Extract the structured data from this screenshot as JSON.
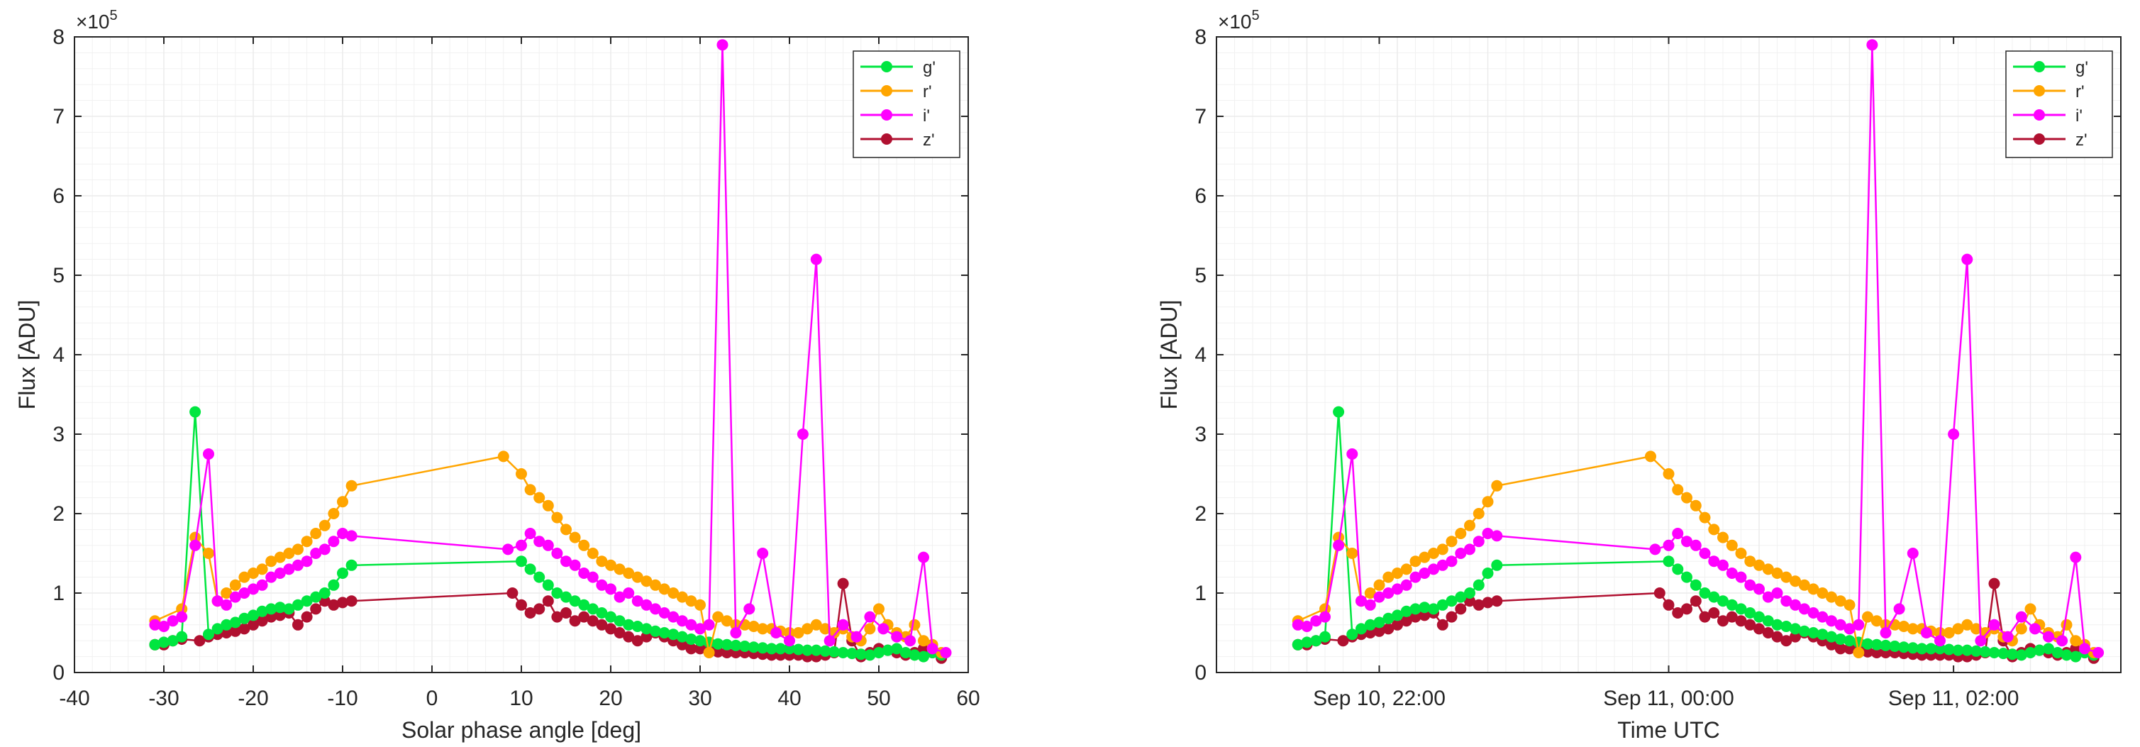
{
  "figure": {
    "colors": {
      "g": "#00e640",
      "r": "#ffa500",
      "i": "#ff00ff",
      "z": "#b01030",
      "grid": "#ebebeb",
      "axis": "#262626"
    }
  },
  "chart_data": [
    {
      "type": "line",
      "xlabel": "Solar phase angle [deg]",
      "ylabel": "Flux [ADU]",
      "y_exponent_label": "×10",
      "y_exponent_power": "5",
      "xlim": [
        -40,
        60
      ],
      "ylim": [
        0,
        8
      ],
      "y_units_multiplier": 100000,
      "xticks": [
        -40,
        -30,
        -20,
        -10,
        0,
        10,
        20,
        30,
        40,
        50,
        60
      ],
      "xtick_labels": [
        "-40",
        "-30",
        "-20",
        "-10",
        "0",
        "10",
        "20",
        "30",
        "40",
        "50",
        "60"
      ],
      "yticks": [
        0,
        1,
        2,
        3,
        4,
        5,
        6,
        7,
        8
      ],
      "ytick_labels": [
        "0",
        "1",
        "2",
        "3",
        "4",
        "5",
        "6",
        "7",
        "8"
      ],
      "grid": true,
      "legend_position": "top-right",
      "series": [
        {
          "name": "g'",
          "color_key": "g",
          "x": [
            -31.0,
            -30.0,
            -29.0,
            -28.0,
            -26.5,
            -25.0,
            -24.0,
            -23.0,
            -22.0,
            -21.0,
            -20.0,
            -19.0,
            -18.0,
            -17.0,
            -16.0,
            -15.0,
            -14.0,
            -13.0,
            -12.0,
            -11.0,
            -10.0,
            -9.0,
            10.0,
            11.0,
            12.0,
            13.0,
            14.0,
            15.0,
            16.0,
            17.0,
            18.0,
            19.0,
            20.0,
            21.0,
            22.0,
            23.0,
            24.0,
            25.0,
            26.0,
            27.0,
            28.0,
            29.0,
            30.0,
            31.0,
            32.0,
            33.0,
            34.0,
            35.0,
            36.0,
            37.0,
            38.0,
            39.0,
            40.0,
            41.0,
            42.0,
            43.0,
            44.0,
            45.0,
            46.0,
            47.0,
            48.0,
            49.0,
            50.0,
            51.0,
            52.0,
            53.0,
            54.0,
            55.0,
            56.0,
            57.0
          ],
          "y": [
            0.35,
            0.38,
            0.4,
            0.45,
            3.28,
            0.48,
            0.55,
            0.6,
            0.63,
            0.68,
            0.72,
            0.77,
            0.8,
            0.82,
            0.8,
            0.85,
            0.9,
            0.95,
            1.0,
            1.1,
            1.25,
            1.35,
            1.4,
            1.3,
            1.2,
            1.1,
            1.0,
            0.95,
            0.9,
            0.85,
            0.8,
            0.75,
            0.7,
            0.65,
            0.6,
            0.58,
            0.55,
            0.52,
            0.5,
            0.48,
            0.45,
            0.42,
            0.4,
            0.38,
            0.36,
            0.35,
            0.34,
            0.33,
            0.32,
            0.31,
            0.3,
            0.3,
            0.3,
            0.29,
            0.28,
            0.28,
            0.27,
            0.26,
            0.25,
            0.24,
            0.23,
            0.22,
            0.25,
            0.28,
            0.3,
            0.25,
            0.22,
            0.2,
            0.25,
            0.22
          ]
        },
        {
          "name": "r'",
          "color_key": "r",
          "x": [
            -31.0,
            -28.0,
            -26.5,
            -25.0,
            -24.0,
            -23.0,
            -22.0,
            -21.0,
            -20.0,
            -19.0,
            -18.0,
            -17.0,
            -16.0,
            -15.0,
            -14.0,
            -13.0,
            -12.0,
            -11.0,
            -10.0,
            -9.0,
            8.0,
            10.0,
            11.0,
            12.0,
            13.0,
            14.0,
            15.0,
            16.0,
            17.0,
            18.0,
            19.0,
            20.0,
            21.0,
            22.0,
            23.0,
            24.0,
            25.0,
            26.0,
            27.0,
            28.0,
            29.0,
            30.0,
            31.0,
            32.0,
            33.0,
            34.0,
            35.0,
            36.0,
            37.0,
            38.0,
            39.0,
            40.0,
            41.0,
            42.0,
            43.0,
            44.0,
            45.0,
            46.0,
            47.0,
            48.0,
            49.0,
            50.0,
            51.0,
            52.0,
            53.0,
            54.0,
            55.0,
            56.0,
            57.0
          ],
          "y": [
            0.65,
            0.8,
            1.7,
            1.5,
            0.9,
            1.0,
            1.1,
            1.2,
            1.25,
            1.3,
            1.4,
            1.45,
            1.5,
            1.55,
            1.65,
            1.75,
            1.85,
            2.0,
            2.15,
            2.35,
            2.72,
            2.5,
            2.3,
            2.2,
            2.1,
            1.95,
            1.8,
            1.7,
            1.6,
            1.5,
            1.4,
            1.35,
            1.3,
            1.25,
            1.2,
            1.15,
            1.1,
            1.05,
            1.0,
            0.95,
            0.9,
            0.85,
            0.25,
            0.7,
            0.65,
            0.6,
            0.6,
            0.58,
            0.55,
            0.55,
            0.52,
            0.5,
            0.5,
            0.55,
            0.6,
            0.55,
            0.5,
            0.55,
            0.45,
            0.4,
            0.55,
            0.8,
            0.6,
            0.5,
            0.45,
            0.6,
            0.4,
            0.35,
            0.25
          ]
        },
        {
          "name": "i'",
          "color_key": "i",
          "x": [
            -31.0,
            -30.0,
            -29.0,
            -28.0,
            -26.5,
            -25.0,
            -24.0,
            -23.0,
            -22.0,
            -21.0,
            -20.0,
            -19.0,
            -18.0,
            -17.0,
            -16.0,
            -15.0,
            -14.0,
            -13.0,
            -12.0,
            -11.0,
            -10.0,
            -9.0,
            8.5,
            10.0,
            11.0,
            12.0,
            13.0,
            14.0,
            15.0,
            16.0,
            17.0,
            18.0,
            19.0,
            20.0,
            21.0,
            22.0,
            23.0,
            24.0,
            25.0,
            26.0,
            27.0,
            28.0,
            29.0,
            30.0,
            31.0,
            32.5,
            34.0,
            35.5,
            37.0,
            38.5,
            40.0,
            41.5,
            43.0,
            44.5,
            46.0,
            47.5,
            49.0,
            50.5,
            52.0,
            53.5,
            55.0,
            56.0,
            57.5
          ],
          "y": [
            0.6,
            0.58,
            0.65,
            0.7,
            1.6,
            2.75,
            0.9,
            0.85,
            0.95,
            1.0,
            1.05,
            1.1,
            1.2,
            1.25,
            1.3,
            1.35,
            1.4,
            1.5,
            1.55,
            1.65,
            1.75,
            1.72,
            1.55,
            1.6,
            1.75,
            1.65,
            1.6,
            1.5,
            1.4,
            1.35,
            1.25,
            1.2,
            1.1,
            1.05,
            0.95,
            1.0,
            0.9,
            0.85,
            0.8,
            0.75,
            0.7,
            0.65,
            0.6,
            0.55,
            0.6,
            7.9,
            0.5,
            0.8,
            1.5,
            0.5,
            0.4,
            3.0,
            5.2,
            0.4,
            0.6,
            0.45,
            0.7,
            0.55,
            0.45,
            0.4,
            1.45,
            0.3,
            0.25
          ]
        },
        {
          "name": "z'",
          "color_key": "z",
          "x": [
            -31.0,
            -30.0,
            -29.0,
            -28.0,
            -26.0,
            -25.0,
            -24.0,
            -23.0,
            -22.0,
            -21.0,
            -20.0,
            -19.0,
            -18.0,
            -17.0,
            -16.0,
            -15.0,
            -14.0,
            -13.0,
            -12.0,
            -11.0,
            -10.0,
            -9.0,
            9.0,
            10.0,
            11.0,
            12.0,
            13.0,
            14.0,
            15.0,
            16.0,
            17.0,
            18.0,
            19.0,
            20.0,
            21.0,
            22.0,
            23.0,
            24.0,
            25.0,
            26.0,
            27.0,
            28.0,
            29.0,
            30.0,
            31.0,
            32.0,
            33.0,
            34.0,
            35.0,
            36.0,
            37.0,
            38.0,
            39.0,
            40.0,
            41.0,
            42.0,
            43.0,
            44.0,
            45.0,
            46.0,
            47.0,
            48.0,
            49.0,
            50.0,
            51.0,
            52.0,
            53.0,
            54.0,
            55.0,
            56.0,
            57.0
          ],
          "y": [
            0.35,
            0.35,
            0.4,
            0.42,
            0.4,
            0.45,
            0.48,
            0.5,
            0.52,
            0.55,
            0.6,
            0.65,
            0.7,
            0.72,
            0.75,
            0.6,
            0.7,
            0.8,
            0.9,
            0.85,
            0.88,
            0.9,
            1.0,
            0.85,
            0.75,
            0.8,
            0.9,
            0.7,
            0.75,
            0.65,
            0.7,
            0.65,
            0.6,
            0.55,
            0.5,
            0.45,
            0.4,
            0.45,
            0.5,
            0.45,
            0.4,
            0.35,
            0.3,
            0.3,
            0.28,
            0.26,
            0.25,
            0.25,
            0.25,
            0.24,
            0.23,
            0.22,
            0.22,
            0.22,
            0.22,
            0.2,
            0.2,
            0.22,
            0.25,
            1.12,
            0.4,
            0.2,
            0.25,
            0.3,
            0.28,
            0.25,
            0.22,
            0.25,
            0.3,
            0.25,
            0.18
          ]
        }
      ]
    },
    {
      "type": "line",
      "xlabel": "Time UTC",
      "ylabel": "Flux [ADU]",
      "y_exponent_label": "×10",
      "y_exponent_power": "5",
      "xlim": [
        -40,
        60
      ],
      "ylim": [
        0,
        8
      ],
      "y_units_multiplier": 100000,
      "xticks": [
        -22,
        10,
        41.5
      ],
      "xtick_labels": [
        "Sep 10, 22:00",
        "Sep 11, 00:00",
        "Sep 11, 02:00"
      ],
      "yticks": [
        0,
        1,
        2,
        3,
        4,
        5,
        6,
        7,
        8
      ],
      "ytick_labels": [
        "0",
        "1",
        "2",
        "3",
        "4",
        "5",
        "6",
        "7",
        "8"
      ],
      "grid": true,
      "legend_position": "top-right",
      "series_same_as_panel": 0
    }
  ]
}
